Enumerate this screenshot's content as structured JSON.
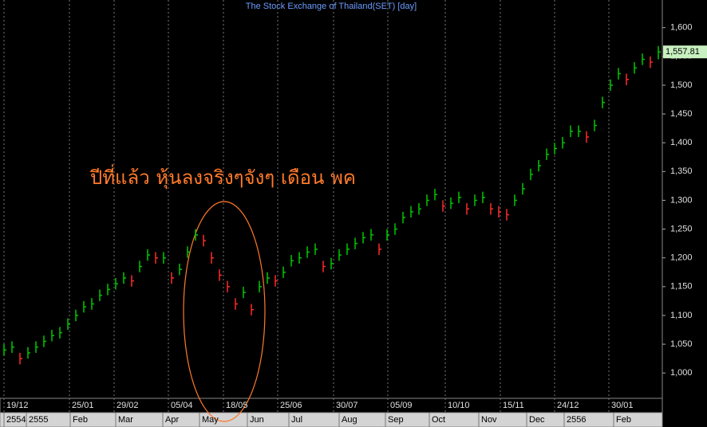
{
  "chart_data": {
    "type": "ohlc",
    "title": "The Stock Exchange of Thailand(SET) [day]",
    "annotation": "ปีที่แล้ว หุ้นลงจริงๆจังๆ เดือน พค",
    "up_color": "#00c800",
    "down_color": "#ff2a2a",
    "x": [
      0,
      1,
      2,
      3,
      4,
      5,
      6,
      7,
      8,
      9,
      10,
      11,
      12,
      13,
      14,
      15,
      16,
      17,
      18,
      19,
      20,
      21,
      22,
      23,
      24,
      25,
      26,
      27,
      28,
      29,
      30,
      31,
      32,
      33,
      34,
      35,
      36,
      37,
      38,
      39,
      40,
      41,
      42,
      43,
      44,
      45,
      46,
      47,
      48,
      49,
      50,
      51,
      52,
      53,
      54,
      55,
      56,
      57,
      58,
      59,
      60,
      61,
      62,
      63,
      64,
      65,
      66,
      67,
      68,
      69,
      70,
      71,
      72,
      73,
      74,
      75,
      76,
      77,
      78,
      79,
      80,
      81,
      82
    ],
    "high": [
      1050,
      1055,
      1035,
      1045,
      1055,
      1065,
      1075,
      1080,
      1095,
      1110,
      1125,
      1130,
      1145,
      1155,
      1165,
      1175,
      1170,
      1195,
      1215,
      1210,
      1210,
      1175,
      1190,
      1220,
      1250,
      1240,
      1210,
      1180,
      1160,
      1130,
      1150,
      1120,
      1160,
      1175,
      1170,
      1185,
      1205,
      1210,
      1220,
      1225,
      1195,
      1200,
      1215,
      1225,
      1235,
      1245,
      1250,
      1225,
      1250,
      1260,
      1280,
      1290,
      1295,
      1310,
      1320,
      1300,
      1305,
      1315,
      1295,
      1310,
      1315,
      1295,
      1290,
      1285,
      1310,
      1330,
      1355,
      1370,
      1390,
      1400,
      1410,
      1430,
      1430,
      1420,
      1440,
      1480,
      1510,
      1530,
      1520,
      1540,
      1555,
      1550,
      1568
    ],
    "low": [
      1030,
      1035,
      1015,
      1025,
      1035,
      1045,
      1055,
      1060,
      1075,
      1090,
      1105,
      1110,
      1125,
      1135,
      1145,
      1155,
      1150,
      1175,
      1195,
      1190,
      1190,
      1155,
      1170,
      1200,
      1230,
      1220,
      1190,
      1160,
      1140,
      1110,
      1130,
      1100,
      1140,
      1155,
      1150,
      1165,
      1185,
      1190,
      1200,
      1205,
      1175,
      1180,
      1195,
      1205,
      1215,
      1225,
      1230,
      1205,
      1230,
      1240,
      1260,
      1270,
      1275,
      1290,
      1300,
      1280,
      1285,
      1295,
      1275,
      1290,
      1295,
      1275,
      1270,
      1265,
      1290,
      1310,
      1335,
      1350,
      1370,
      1380,
      1390,
      1410,
      1410,
      1400,
      1420,
      1460,
      1490,
      1510,
      1500,
      1520,
      1535,
      1530,
      1545
    ],
    "close": [
      1040,
      1045,
      1025,
      1035,
      1045,
      1055,
      1065,
      1070,
      1085,
      1100,
      1115,
      1120,
      1135,
      1145,
      1155,
      1165,
      1160,
      1185,
      1205,
      1200,
      1200,
      1165,
      1180,
      1210,
      1240,
      1230,
      1200,
      1170,
      1150,
      1120,
      1140,
      1110,
      1150,
      1165,
      1160,
      1175,
      1195,
      1200,
      1210,
      1215,
      1185,
      1190,
      1205,
      1215,
      1225,
      1235,
      1240,
      1215,
      1240,
      1250,
      1270,
      1280,
      1285,
      1300,
      1310,
      1290,
      1295,
      1305,
      1285,
      1300,
      1305,
      1285,
      1280,
      1275,
      1300,
      1320,
      1345,
      1360,
      1380,
      1390,
      1400,
      1420,
      1420,
      1410,
      1430,
      1470,
      1500,
      1520,
      1510,
      1530,
      1545,
      1540,
      1557.81
    ],
    "last_label": "1,557.81",
    "xlim": [
      -0.5,
      82.5
    ],
    "ylim": [
      956,
      1648
    ],
    "yticks": [
      {
        "value": 1000,
        "label": "1,000"
      },
      {
        "value": 1050,
        "label": "1,050"
      },
      {
        "value": 1100,
        "label": "1,100"
      },
      {
        "value": 1150,
        "label": "1,150"
      },
      {
        "value": 1200,
        "label": "1,200"
      },
      {
        "value": 1250,
        "label": "1,250"
      },
      {
        "value": 1300,
        "label": "1,300"
      },
      {
        "value": 1350,
        "label": "1,350"
      },
      {
        "value": 1400,
        "label": "1,400"
      },
      {
        "value": 1450,
        "label": "1,450"
      },
      {
        "value": 1500,
        "label": "1,500"
      },
      {
        "value": 1550,
        "label": "1,550"
      },
      {
        "value": 1600,
        "label": "1,600"
      }
    ],
    "xticks": [
      {
        "value": 0,
        "label": "19/12"
      },
      {
        "value": 8.2,
        "label": "25/01"
      },
      {
        "value": 13.8,
        "label": "29/02"
      },
      {
        "value": 20.6,
        "label": "05/04"
      },
      {
        "value": 27.5,
        "label": "18/05"
      },
      {
        "value": 34.3,
        "label": "25/06"
      },
      {
        "value": 41.3,
        "label": "30/07"
      },
      {
        "value": 48.1,
        "label": "05/09"
      },
      {
        "value": 55.3,
        "label": "10/10"
      },
      {
        "value": 62.2,
        "label": "15/11"
      },
      {
        "value": 69,
        "label": "24/12"
      },
      {
        "value": 75.8,
        "label": "30/01"
      }
    ],
    "xticks2": [
      {
        "value": 0,
        "label": "2554"
      },
      {
        "value": 2.8,
        "label": "2555"
      },
      {
        "value": 8.3,
        "label": "Feb"
      },
      {
        "value": 14,
        "label": "Mar"
      },
      {
        "value": 19.9,
        "label": "Apr"
      },
      {
        "value": 24.5,
        "label": "May"
      },
      {
        "value": 30.5,
        "label": "Jun"
      },
      {
        "value": 35.7,
        "label": "Jul"
      },
      {
        "value": 42,
        "label": "Aug"
      },
      {
        "value": 47.8,
        "label": "Sep"
      },
      {
        "value": 53.3,
        "label": "Oct"
      },
      {
        "value": 59.5,
        "label": "Nov"
      },
      {
        "value": 65.5,
        "label": "Dec"
      },
      {
        "value": 70.2,
        "label": "2556"
      },
      {
        "value": 76.4,
        "label": "Feb"
      }
    ]
  }
}
